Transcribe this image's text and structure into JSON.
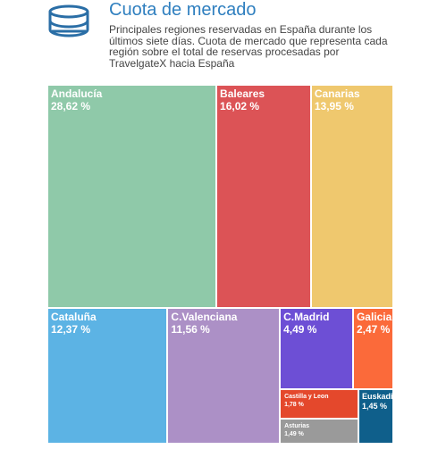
{
  "header": {
    "title": "Cuota de mercado",
    "subtitle": "Principales regiones reservadas en España durante los últimos siete días. Cuota de mercado que representa cada región sobre el total de reservas procesadas por TravelgateX hacia España",
    "icon": "database-cylinder-icon",
    "icon_color": "#2a6ea6"
  },
  "chart_data": {
    "type": "treemap",
    "title": "Cuota de mercado",
    "unit": "%",
    "items": [
      {
        "name": "Andalucía",
        "label": "28,62 %",
        "value": 28.62,
        "color": "#8fc9a9"
      },
      {
        "name": "Baleares",
        "label": "16,02 %",
        "value": 16.02,
        "color": "#dc5356"
      },
      {
        "name": "Canarias",
        "label": "13,95 %",
        "value": 13.95,
        "color": "#efc86e"
      },
      {
        "name": "Cataluña",
        "label": "12,37 %",
        "value": 12.37,
        "color": "#5cb3e4"
      },
      {
        "name": "C.Valenciana",
        "label": "11,56 %",
        "value": 11.56,
        "color": "#ac90c6"
      },
      {
        "name": "C.Madrid",
        "label": "4,49 %",
        "value": 4.49,
        "color": "#6d4fd5"
      },
      {
        "name": "Galicia",
        "label": "2,47 %",
        "value": 2.47,
        "color": "#fb6a3a"
      },
      {
        "name": "Castilla y Leon",
        "label": "1,78 %",
        "value": 1.78,
        "color": "#e4482c"
      },
      {
        "name": "Euskadi",
        "label": "1,45 %",
        "value": 1.45,
        "color": "#0f5f8b"
      },
      {
        "name": "Asturias",
        "label": "1,49 %",
        "value": 1.49,
        "color": "#9a9a9a"
      }
    ]
  }
}
